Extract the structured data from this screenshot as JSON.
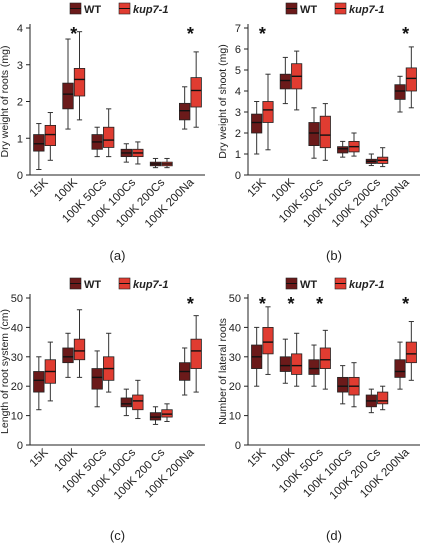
{
  "figure": {
    "panels": [
      {
        "label": "(a)",
        "ylabel": "Dry weight of roots (mg)",
        "ylim": [
          0,
          4
        ],
        "yticks": [
          0,
          1,
          2,
          3,
          4
        ],
        "legend": [
          "WT",
          "kup7-1"
        ],
        "categories": [
          "15K",
          "100K",
          "100K 50Cs",
          "100K 100Cs",
          "100K 200Cs",
          "100K 200Na"
        ],
        "significant": [
          false,
          true,
          false,
          false,
          false,
          true
        ]
      },
      {
        "label": "(b)",
        "ylabel": "Dry weight of shoot (mg)",
        "ylim": [
          0,
          7
        ],
        "yticks": [
          0,
          1,
          2,
          3,
          4,
          5,
          6,
          7
        ],
        "legend": [
          "WT",
          "kup7-1"
        ],
        "categories": [
          "15K",
          "100K",
          "100K 50Cs",
          "100K 100Cs",
          "100K 200Cs",
          "100K 200Na"
        ],
        "significant": [
          true,
          false,
          false,
          false,
          false,
          true
        ]
      },
      {
        "label": "(c)",
        "ylabel": "Length of root system (cm)",
        "ylim": [
          0,
          50
        ],
        "yticks": [
          0,
          10,
          20,
          30,
          40,
          50
        ],
        "legend": [
          "WT",
          "kup7-1"
        ],
        "categories": [
          "15K",
          "100K",
          "100K 50Cs",
          "100K 100Cs",
          "100K 200 Cs",
          "100K 200Na"
        ],
        "significant": [
          false,
          false,
          false,
          false,
          false,
          true
        ]
      },
      {
        "label": "(d)",
        "ylabel": "Number of lateral roots",
        "ylim": [
          0,
          50
        ],
        "yticks": [
          0,
          10,
          20,
          30,
          40,
          50
        ],
        "legend": [
          "WT",
          "kup7-1"
        ],
        "categories": [
          "15K",
          "100K",
          "100K 50Cs",
          "100K 100Cs",
          "100K 200 Cs",
          "100K 200Na"
        ],
        "significant": [
          true,
          true,
          true,
          false,
          false,
          true
        ]
      }
    ]
  },
  "chart_data": [
    {
      "type": "boxplot",
      "ylabel": "Dry weight of roots (mg)",
      "ylim": [
        0,
        4
      ],
      "categories": [
        "15K",
        "100K",
        "100K 50Cs",
        "100K 100Cs",
        "100K 200Cs",
        "100K 200Na"
      ],
      "series": [
        {
          "name": "WT",
          "color": "#6b1a1a",
          "boxes": [
            {
              "min": 0.15,
              "q1": 0.65,
              "median": 0.85,
              "q3": 1.1,
              "max": 1.4
            },
            {
              "min": 1.25,
              "q1": 1.8,
              "median": 2.2,
              "q3": 2.5,
              "max": 3.7
            },
            {
              "min": 0.5,
              "q1": 0.7,
              "median": 0.9,
              "q3": 1.1,
              "max": 1.3
            },
            {
              "min": 0.35,
              "q1": 0.5,
              "median": 0.6,
              "q3": 0.7,
              "max": 0.85
            },
            {
              "min": 0.2,
              "q1": 0.25,
              "median": 0.3,
              "q3": 0.35,
              "max": 0.45
            },
            {
              "min": 1.25,
              "q1": 1.5,
              "median": 1.75,
              "q3": 1.95,
              "max": 2.4
            }
          ]
        },
        {
          "name": "kup7-1",
          "color": "#e03c31",
          "boxes": [
            {
              "min": 0.4,
              "q1": 0.8,
              "median": 1.1,
              "q3": 1.35,
              "max": 1.7
            },
            {
              "min": 1.5,
              "q1": 2.15,
              "median": 2.6,
              "q3": 2.9,
              "max": 3.9
            },
            {
              "min": 0.5,
              "q1": 0.75,
              "median": 0.95,
              "q3": 1.3,
              "max": 1.8
            },
            {
              "min": 0.3,
              "q1": 0.5,
              "median": 0.6,
              "q3": 0.7,
              "max": 0.9
            },
            {
              "min": 0.2,
              "q1": 0.25,
              "median": 0.3,
              "q3": 0.35,
              "max": 0.45
            },
            {
              "min": 1.3,
              "q1": 1.85,
              "median": 2.3,
              "q3": 2.65,
              "max": 3.35
            }
          ]
        }
      ]
    },
    {
      "type": "boxplot",
      "ylabel": "Dry weight of shoot (mg)",
      "ylim": [
        0,
        7
      ],
      "categories": [
        "15K",
        "100K",
        "100K 50Cs",
        "100K 100Cs",
        "100K 200Cs",
        "100K 200Na"
      ],
      "series": [
        {
          "name": "WT",
          "color": "#6b1a1a",
          "boxes": [
            {
              "min": 1.0,
              "q1": 2.0,
              "median": 2.5,
              "q3": 2.9,
              "max": 3.5
            },
            {
              "min": 3.4,
              "q1": 4.1,
              "median": 4.5,
              "q3": 4.8,
              "max": 5.6
            },
            {
              "min": 0.8,
              "q1": 1.4,
              "median": 2.0,
              "q3": 2.5,
              "max": 3.2
            },
            {
              "min": 0.85,
              "q1": 1.05,
              "median": 1.25,
              "q3": 1.35,
              "max": 1.6
            },
            {
              "min": 0.45,
              "q1": 0.55,
              "median": 0.65,
              "q3": 0.75,
              "max": 1.0
            },
            {
              "min": 3.0,
              "q1": 3.6,
              "median": 4.0,
              "q3": 4.3,
              "max": 4.7
            }
          ]
        },
        {
          "name": "kup7-1",
          "color": "#e03c31",
          "boxes": [
            {
              "min": 1.2,
              "q1": 2.5,
              "median": 3.1,
              "q3": 3.5,
              "max": 4.8
            },
            {
              "min": 3.1,
              "q1": 4.1,
              "median": 4.7,
              "q3": 5.3,
              "max": 5.9
            },
            {
              "min": 0.7,
              "q1": 1.3,
              "median": 1.9,
              "q3": 2.8,
              "max": 3.4
            },
            {
              "min": 0.9,
              "q1": 1.1,
              "median": 1.35,
              "q3": 1.6,
              "max": 2.0
            },
            {
              "min": 0.4,
              "q1": 0.55,
              "median": 0.7,
              "q3": 0.85,
              "max": 1.3
            },
            {
              "min": 3.2,
              "q1": 4.0,
              "median": 4.6,
              "q3": 5.1,
              "max": 6.1
            }
          ]
        }
      ]
    },
    {
      "type": "boxplot",
      "ylabel": "Length of root system (cm)",
      "ylim": [
        0,
        50
      ],
      "categories": [
        "15K",
        "100K",
        "100K 50Cs",
        "100K 100Cs",
        "100K 200 Cs",
        "100K 200Na"
      ],
      "series": [
        {
          "name": "WT",
          "color": "#6b1a1a",
          "boxes": [
            {
              "min": 12,
              "q1": 18,
              "median": 22,
              "q3": 25,
              "max": 30
            },
            {
              "min": 23,
              "q1": 28,
              "median": 30,
              "q3": 33,
              "max": 38
            },
            {
              "min": 13,
              "q1": 19,
              "median": 23,
              "q3": 26,
              "max": 32
            },
            {
              "min": 10,
              "q1": 13,
              "median": 14,
              "q3": 16,
              "max": 19
            },
            {
              "min": 7,
              "q1": 8.5,
              "median": 9.5,
              "q3": 11,
              "max": 13
            },
            {
              "min": 17,
              "q1": 22,
              "median": 25,
              "q3": 28,
              "max": 33
            }
          ]
        },
        {
          "name": "kup7-1",
          "color": "#e03c31",
          "boxes": [
            {
              "min": 15,
              "q1": 21,
              "median": 25,
              "q3": 29,
              "max": 35
            },
            {
              "min": 23,
              "q1": 29,
              "median": 32,
              "q3": 36,
              "max": 46
            },
            {
              "min": 18,
              "q1": 22,
              "median": 26,
              "q3": 30,
              "max": 38
            },
            {
              "min": 9,
              "q1": 12,
              "median": 15,
              "q3": 17,
              "max": 22
            },
            {
              "min": 8,
              "q1": 9.5,
              "median": 10.5,
              "q3": 12,
              "max": 14
            },
            {
              "min": 18,
              "q1": 26,
              "median": 32,
              "q3": 36,
              "max": 44
            }
          ]
        }
      ]
    },
    {
      "type": "boxplot",
      "ylabel": "Number of lateral roots",
      "ylim": [
        0,
        50
      ],
      "categories": [
        "15K",
        "100K",
        "100K 50Cs",
        "100K 100Cs",
        "100K 200 Cs",
        "100K 200Na"
      ],
      "series": [
        {
          "name": "WT",
          "color": "#6b1a1a",
          "boxes": [
            {
              "min": 20,
              "q1": 26,
              "median": 30,
              "q3": 34,
              "max": 40
            },
            {
              "min": 21,
              "q1": 25,
              "median": 27,
              "q3": 30,
              "max": 36
            },
            {
              "min": 20,
              "q1": 24,
              "median": 26,
              "q3": 29,
              "max": 34
            },
            {
              "min": 14,
              "q1": 18,
              "median": 20,
              "q3": 23,
              "max": 27
            },
            {
              "min": 11,
              "q1": 13,
              "median": 15,
              "q3": 17,
              "max": 19
            },
            {
              "min": 19,
              "q1": 23,
              "median": 25,
              "q3": 29,
              "max": 35
            }
          ]
        },
        {
          "name": "kup7-1",
          "color": "#e03c31",
          "boxes": [
            {
              "min": 24,
              "q1": 31,
              "median": 35,
              "q3": 40,
              "max": 47
            },
            {
              "min": 20,
              "q1": 24,
              "median": 27,
              "q3": 31,
              "max": 38
            },
            {
              "min": 19,
              "q1": 26,
              "median": 29,
              "q3": 33,
              "max": 39
            },
            {
              "min": 13,
              "q1": 17,
              "median": 20,
              "q3": 23,
              "max": 28
            },
            {
              "min": 12,
              "q1": 14,
              "median": 15,
              "q3": 18,
              "max": 20
            },
            {
              "min": 22,
              "q1": 28,
              "median": 31,
              "q3": 35,
              "max": 42
            }
          ]
        }
      ]
    }
  ]
}
